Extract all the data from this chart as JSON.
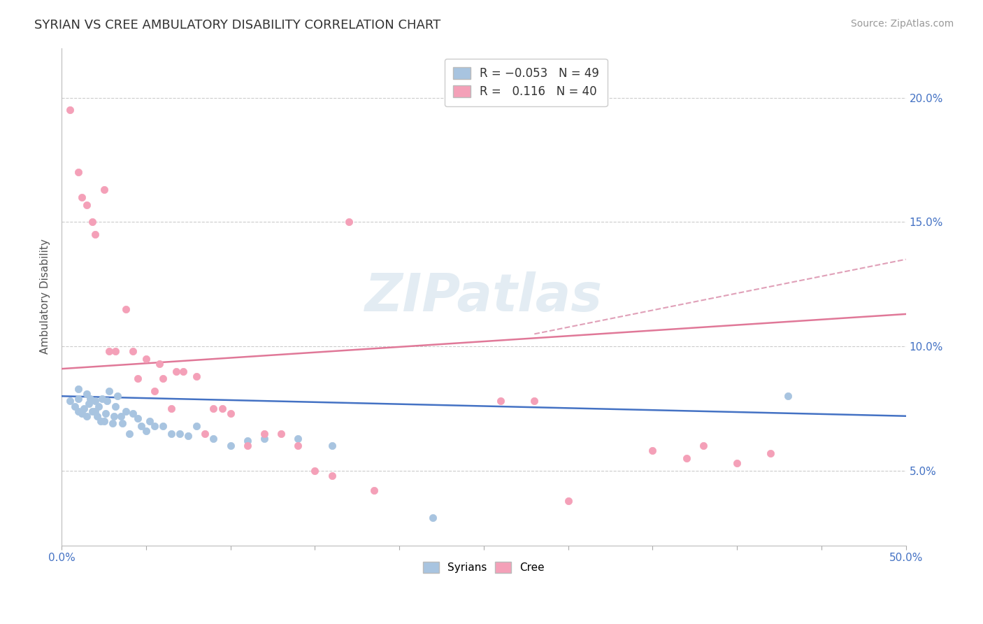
{
  "title": "SYRIAN VS CREE AMBULATORY DISABILITY CORRELATION CHART",
  "source": "Source: ZipAtlas.com",
  "xlabel": "",
  "ylabel": "Ambulatory Disability",
  "xlim": [
    0.0,
    0.5
  ],
  "ylim": [
    0.02,
    0.22
  ],
  "xticks": [
    0.0,
    0.05,
    0.1,
    0.15,
    0.2,
    0.25,
    0.3,
    0.35,
    0.4,
    0.45,
    0.5
  ],
  "xticklabels": [
    "0.0%",
    "",
    "",
    "",
    "",
    "",
    "",
    "",
    "",
    "",
    "50.0%"
  ],
  "yticks": [
    0.05,
    0.1,
    0.15,
    0.2
  ],
  "yticklabels": [
    "5.0%",
    "10.0%",
    "15.0%",
    "20.0%"
  ],
  "syrian_R": -0.053,
  "syrian_N": 49,
  "cree_R": 0.116,
  "cree_N": 40,
  "syrian_color": "#a8c4e0",
  "cree_color": "#f4a0b8",
  "syrian_line_color": "#4472c4",
  "cree_line_color": "#e07898",
  "dashed_line_color": "#e0a0b8",
  "watermark": "ZIPatlas",
  "syrian_line_x0": 0.0,
  "syrian_line_y0": 0.08,
  "syrian_line_x1": 0.5,
  "syrian_line_y1": 0.072,
  "cree_line_x0": 0.0,
  "cree_line_y0": 0.091,
  "cree_line_x1": 0.5,
  "cree_line_y1": 0.113,
  "dashed_line_x0": 0.28,
  "dashed_line_y0": 0.105,
  "dashed_line_x1": 0.5,
  "dashed_line_y1": 0.135,
  "syrian_points_x": [
    0.005,
    0.008,
    0.01,
    0.01,
    0.01,
    0.012,
    0.013,
    0.015,
    0.015,
    0.016,
    0.017,
    0.018,
    0.02,
    0.02,
    0.021,
    0.022,
    0.023,
    0.024,
    0.025,
    0.026,
    0.027,
    0.028,
    0.03,
    0.031,
    0.032,
    0.033,
    0.035,
    0.036,
    0.038,
    0.04,
    0.042,
    0.045,
    0.047,
    0.05,
    0.052,
    0.055,
    0.06,
    0.065,
    0.07,
    0.075,
    0.08,
    0.09,
    0.1,
    0.11,
    0.12,
    0.14,
    0.16,
    0.43,
    0.22
  ],
  "syrian_points_y": [
    0.078,
    0.076,
    0.074,
    0.079,
    0.083,
    0.073,
    0.075,
    0.072,
    0.081,
    0.077,
    0.079,
    0.074,
    0.074,
    0.078,
    0.072,
    0.076,
    0.07,
    0.079,
    0.07,
    0.073,
    0.078,
    0.082,
    0.069,
    0.072,
    0.076,
    0.08,
    0.072,
    0.069,
    0.074,
    0.065,
    0.073,
    0.071,
    0.068,
    0.066,
    0.07,
    0.068,
    0.068,
    0.065,
    0.065,
    0.064,
    0.068,
    0.063,
    0.06,
    0.062,
    0.063,
    0.063,
    0.06,
    0.08,
    0.031
  ],
  "cree_points_x": [
    0.005,
    0.01,
    0.012,
    0.015,
    0.018,
    0.02,
    0.025,
    0.028,
    0.032,
    0.038,
    0.042,
    0.045,
    0.05,
    0.055,
    0.058,
    0.06,
    0.065,
    0.068,
    0.072,
    0.08,
    0.085,
    0.09,
    0.095,
    0.1,
    0.11,
    0.12,
    0.13,
    0.14,
    0.15,
    0.16,
    0.17,
    0.185,
    0.26,
    0.3,
    0.35,
    0.37,
    0.38,
    0.4,
    0.42,
    0.28
  ],
  "cree_points_y": [
    0.195,
    0.17,
    0.16,
    0.157,
    0.15,
    0.145,
    0.163,
    0.098,
    0.098,
    0.115,
    0.098,
    0.087,
    0.095,
    0.082,
    0.093,
    0.087,
    0.075,
    0.09,
    0.09,
    0.088,
    0.065,
    0.075,
    0.075,
    0.073,
    0.06,
    0.065,
    0.065,
    0.06,
    0.05,
    0.048,
    0.15,
    0.042,
    0.078,
    0.038,
    0.058,
    0.055,
    0.06,
    0.053,
    0.057,
    0.078
  ]
}
